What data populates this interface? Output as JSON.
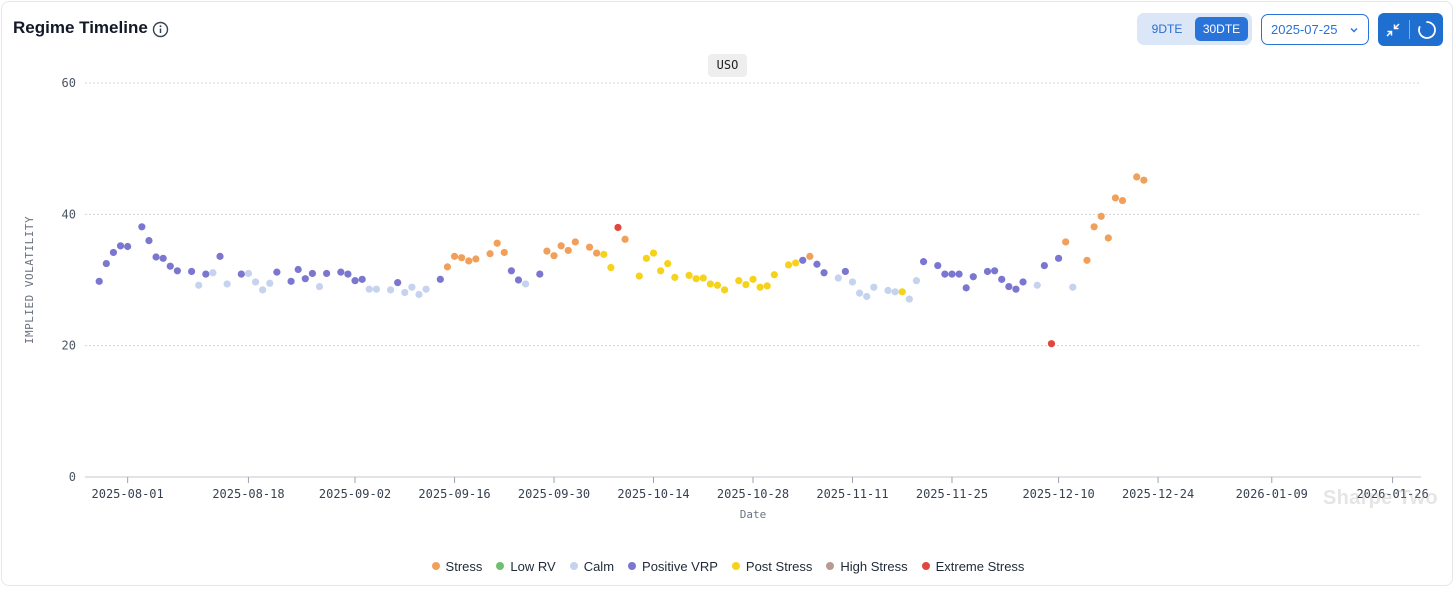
{
  "header": {
    "title": "Regime Timeline",
    "dte_options": [
      "9DTE",
      "30DTE"
    ],
    "dte_selected": "30DTE",
    "date_value": "2025-07-25"
  },
  "badge": "USO",
  "watermark": "Sharpe Two",
  "colors": {
    "Stress": "#f0a05a",
    "Low RV": "#6fbf6f",
    "Calm": "#c5d3ee",
    "Positive VRP": "#7b77d0",
    "Post Stress": "#f7d21a",
    "High Stress": "#b89a92",
    "Extreme Stress": "#e2473f",
    "accent": "#2a73d8"
  },
  "chart_data": {
    "type": "scatter",
    "ylabel": "IMPLIED VOLATILITY",
    "xlabel": "Date",
    "ylim": [
      0,
      60
    ],
    "yticks": [
      0,
      20,
      40,
      60
    ],
    "x_range": [
      "2025-07-26",
      "2026-01-30"
    ],
    "xticks": [
      "2025-08-01",
      "2025-08-18",
      "2025-09-02",
      "2025-09-16",
      "2025-09-30",
      "2025-10-14",
      "2025-10-28",
      "2025-11-11",
      "2025-11-25",
      "2025-12-10",
      "2025-12-24",
      "2026-01-09",
      "2026-01-26"
    ],
    "legend": [
      "Stress",
      "Low RV",
      "Calm",
      "Positive VRP",
      "Post Stress",
      "High Stress",
      "Extreme Stress"
    ],
    "points": [
      {
        "x": "2025-07-28",
        "y": 29.8,
        "regime": "Positive VRP"
      },
      {
        "x": "2025-07-29",
        "y": 32.5,
        "regime": "Positive VRP"
      },
      {
        "x": "2025-07-30",
        "y": 34.2,
        "regime": "Positive VRP"
      },
      {
        "x": "2025-07-31",
        "y": 35.2,
        "regime": "Positive VRP"
      },
      {
        "x": "2025-08-01",
        "y": 35.1,
        "regime": "Positive VRP"
      },
      {
        "x": "2025-08-03",
        "y": 38.1,
        "regime": "Positive VRP"
      },
      {
        "x": "2025-08-04",
        "y": 36.0,
        "regime": "Positive VRP"
      },
      {
        "x": "2025-08-05",
        "y": 33.5,
        "regime": "Positive VRP"
      },
      {
        "x": "2025-08-06",
        "y": 33.3,
        "regime": "Positive VRP"
      },
      {
        "x": "2025-08-07",
        "y": 32.1,
        "regime": "Positive VRP"
      },
      {
        "x": "2025-08-08",
        "y": 31.4,
        "regime": "Positive VRP"
      },
      {
        "x": "2025-08-10",
        "y": 31.3,
        "regime": "Positive VRP"
      },
      {
        "x": "2025-08-11",
        "y": 29.2,
        "regime": "Calm"
      },
      {
        "x": "2025-08-12",
        "y": 30.9,
        "regime": "Positive VRP"
      },
      {
        "x": "2025-08-13",
        "y": 31.1,
        "regime": "Calm"
      },
      {
        "x": "2025-08-14",
        "y": 33.6,
        "regime": "Positive VRP"
      },
      {
        "x": "2025-08-15",
        "y": 29.4,
        "regime": "Calm"
      },
      {
        "x": "2025-08-17",
        "y": 30.9,
        "regime": "Positive VRP"
      },
      {
        "x": "2025-08-18",
        "y": 31.0,
        "regime": "Calm"
      },
      {
        "x": "2025-08-19",
        "y": 29.7,
        "regime": "Calm"
      },
      {
        "x": "2025-08-20",
        "y": 28.5,
        "regime": "Calm"
      },
      {
        "x": "2025-08-21",
        "y": 29.5,
        "regime": "Calm"
      },
      {
        "x": "2025-08-22",
        "y": 31.2,
        "regime": "Positive VRP"
      },
      {
        "x": "2025-08-24",
        "y": 29.8,
        "regime": "Positive VRP"
      },
      {
        "x": "2025-08-25",
        "y": 31.6,
        "regime": "Positive VRP"
      },
      {
        "x": "2025-08-26",
        "y": 30.2,
        "regime": "Positive VRP"
      },
      {
        "x": "2025-08-27",
        "y": 31.0,
        "regime": "Positive VRP"
      },
      {
        "x": "2025-08-28",
        "y": 29.0,
        "regime": "Calm"
      },
      {
        "x": "2025-08-29",
        "y": 31.0,
        "regime": "Positive VRP"
      },
      {
        "x": "2025-08-31",
        "y": 31.2,
        "regime": "Positive VRP"
      },
      {
        "x": "2025-09-01",
        "y": 30.9,
        "regime": "Positive VRP"
      },
      {
        "x": "2025-09-02",
        "y": 29.9,
        "regime": "Positive VRP"
      },
      {
        "x": "2025-09-03",
        "y": 30.1,
        "regime": "Positive VRP"
      },
      {
        "x": "2025-09-04",
        "y": 28.6,
        "regime": "Calm"
      },
      {
        "x": "2025-09-05",
        "y": 28.6,
        "regime": "Calm"
      },
      {
        "x": "2025-09-07",
        "y": 28.5,
        "regime": "Calm"
      },
      {
        "x": "2025-09-08",
        "y": 29.6,
        "regime": "Positive VRP"
      },
      {
        "x": "2025-09-09",
        "y": 28.1,
        "regime": "Calm"
      },
      {
        "x": "2025-09-10",
        "y": 28.9,
        "regime": "Calm"
      },
      {
        "x": "2025-09-11",
        "y": 27.8,
        "regime": "Calm"
      },
      {
        "x": "2025-09-12",
        "y": 28.6,
        "regime": "Calm"
      },
      {
        "x": "2025-09-14",
        "y": 30.1,
        "regime": "Positive VRP"
      },
      {
        "x": "2025-09-15",
        "y": 32.0,
        "regime": "Stress"
      },
      {
        "x": "2025-09-16",
        "y": 33.6,
        "regime": "Stress"
      },
      {
        "x": "2025-09-17",
        "y": 33.4,
        "regime": "Stress"
      },
      {
        "x": "2025-09-18",
        "y": 32.9,
        "regime": "Stress"
      },
      {
        "x": "2025-09-19",
        "y": 33.2,
        "regime": "Stress"
      },
      {
        "x": "2025-09-21",
        "y": 34.0,
        "regime": "Stress"
      },
      {
        "x": "2025-09-22",
        "y": 35.6,
        "regime": "Stress"
      },
      {
        "x": "2025-09-23",
        "y": 34.2,
        "regime": "Stress"
      },
      {
        "x": "2025-09-24",
        "y": 31.4,
        "regime": "Positive VRP"
      },
      {
        "x": "2025-09-25",
        "y": 30.0,
        "regime": "Positive VRP"
      },
      {
        "x": "2025-09-26",
        "y": 29.4,
        "regime": "Calm"
      },
      {
        "x": "2025-09-28",
        "y": 30.9,
        "regime": "Positive VRP"
      },
      {
        "x": "2025-09-29",
        "y": 34.4,
        "regime": "Stress"
      },
      {
        "x": "2025-09-30",
        "y": 33.7,
        "regime": "Stress"
      },
      {
        "x": "2025-10-01",
        "y": 35.2,
        "regime": "Stress"
      },
      {
        "x": "2025-10-02",
        "y": 34.5,
        "regime": "Stress"
      },
      {
        "x": "2025-10-03",
        "y": 35.8,
        "regime": "Stress"
      },
      {
        "x": "2025-10-05",
        "y": 35.0,
        "regime": "Stress"
      },
      {
        "x": "2025-10-06",
        "y": 34.1,
        "regime": "Stress"
      },
      {
        "x": "2025-10-07",
        "y": 33.9,
        "regime": "Post Stress"
      },
      {
        "x": "2025-10-08",
        "y": 31.9,
        "regime": "Post Stress"
      },
      {
        "x": "2025-10-09",
        "y": 38.0,
        "regime": "Extreme Stress"
      },
      {
        "x": "2025-10-10",
        "y": 36.2,
        "regime": "Stress"
      },
      {
        "x": "2025-10-12",
        "y": 30.6,
        "regime": "Post Stress"
      },
      {
        "x": "2025-10-13",
        "y": 33.3,
        "regime": "Post Stress"
      },
      {
        "x": "2025-10-14",
        "y": 34.1,
        "regime": "Post Stress"
      },
      {
        "x": "2025-10-15",
        "y": 31.4,
        "regime": "Post Stress"
      },
      {
        "x": "2025-10-16",
        "y": 32.5,
        "regime": "Post Stress"
      },
      {
        "x": "2025-10-17",
        "y": 30.4,
        "regime": "Post Stress"
      },
      {
        "x": "2025-10-19",
        "y": 30.7,
        "regime": "Post Stress"
      },
      {
        "x": "2025-10-20",
        "y": 30.2,
        "regime": "Post Stress"
      },
      {
        "x": "2025-10-21",
        "y": 30.3,
        "regime": "Post Stress"
      },
      {
        "x": "2025-10-22",
        "y": 29.4,
        "regime": "Post Stress"
      },
      {
        "x": "2025-10-23",
        "y": 29.2,
        "regime": "Post Stress"
      },
      {
        "x": "2025-10-24",
        "y": 28.5,
        "regime": "Post Stress"
      },
      {
        "x": "2025-10-26",
        "y": 29.9,
        "regime": "Post Stress"
      },
      {
        "x": "2025-10-27",
        "y": 29.3,
        "regime": "Post Stress"
      },
      {
        "x": "2025-10-28",
        "y": 30.1,
        "regime": "Post Stress"
      },
      {
        "x": "2025-10-29",
        "y": 28.9,
        "regime": "Post Stress"
      },
      {
        "x": "2025-10-30",
        "y": 29.1,
        "regime": "Post Stress"
      },
      {
        "x": "2025-10-31",
        "y": 30.8,
        "regime": "Post Stress"
      },
      {
        "x": "2025-11-02",
        "y": 32.3,
        "regime": "Post Stress"
      },
      {
        "x": "2025-11-03",
        "y": 32.6,
        "regime": "Post Stress"
      },
      {
        "x": "2025-11-04",
        "y": 33.0,
        "regime": "Positive VRP"
      },
      {
        "x": "2025-11-05",
        "y": 33.6,
        "regime": "Stress"
      },
      {
        "x": "2025-11-06",
        "y": 32.4,
        "regime": "Positive VRP"
      },
      {
        "x": "2025-11-07",
        "y": 31.1,
        "regime": "Positive VRP"
      },
      {
        "x": "2025-11-09",
        "y": 30.3,
        "regime": "Calm"
      },
      {
        "x": "2025-11-10",
        "y": 31.3,
        "regime": "Positive VRP"
      },
      {
        "x": "2025-11-11",
        "y": 29.7,
        "regime": "Calm"
      },
      {
        "x": "2025-11-12",
        "y": 28.0,
        "regime": "Calm"
      },
      {
        "x": "2025-11-13",
        "y": 27.5,
        "regime": "Calm"
      },
      {
        "x": "2025-11-14",
        "y": 28.9,
        "regime": "Calm"
      },
      {
        "x": "2025-11-16",
        "y": 28.4,
        "regime": "Calm"
      },
      {
        "x": "2025-11-17",
        "y": 28.2,
        "regime": "Calm"
      },
      {
        "x": "2025-11-18",
        "y": 28.2,
        "regime": "Post Stress"
      },
      {
        "x": "2025-11-19",
        "y": 27.1,
        "regime": "Calm"
      },
      {
        "x": "2025-11-20",
        "y": 29.9,
        "regime": "Calm"
      },
      {
        "x": "2025-11-21",
        "y": 32.8,
        "regime": "Positive VRP"
      },
      {
        "x": "2025-11-23",
        "y": 32.2,
        "regime": "Positive VRP"
      },
      {
        "x": "2025-11-24",
        "y": 30.9,
        "regime": "Positive VRP"
      },
      {
        "x": "2025-11-25",
        "y": 30.9,
        "regime": "Positive VRP"
      },
      {
        "x": "2025-11-26",
        "y": 30.9,
        "regime": "Positive VRP"
      },
      {
        "x": "2025-11-27",
        "y": 28.8,
        "regime": "Positive VRP"
      },
      {
        "x": "2025-11-28",
        "y": 30.5,
        "regime": "Positive VRP"
      },
      {
        "x": "2025-11-30",
        "y": 31.3,
        "regime": "Positive VRP"
      },
      {
        "x": "2025-12-01",
        "y": 31.4,
        "regime": "Positive VRP"
      },
      {
        "x": "2025-12-02",
        "y": 30.1,
        "regime": "Positive VRP"
      },
      {
        "x": "2025-12-03",
        "y": 29.0,
        "regime": "Positive VRP"
      },
      {
        "x": "2025-12-04",
        "y": 28.6,
        "regime": "Positive VRP"
      },
      {
        "x": "2025-12-05",
        "y": 29.7,
        "regime": "Positive VRP"
      },
      {
        "x": "2025-12-07",
        "y": 29.2,
        "regime": "Calm"
      },
      {
        "x": "2025-12-08",
        "y": 32.2,
        "regime": "Positive VRP"
      },
      {
        "x": "2025-12-09",
        "y": 20.3,
        "regime": "Extreme Stress"
      },
      {
        "x": "2025-12-10",
        "y": 33.3,
        "regime": "Positive VRP"
      },
      {
        "x": "2025-12-11",
        "y": 35.8,
        "regime": "Stress"
      },
      {
        "x": "2025-12-12",
        "y": 28.9,
        "regime": "Calm"
      },
      {
        "x": "2025-12-14",
        "y": 33.0,
        "regime": "Stress"
      },
      {
        "x": "2025-12-15",
        "y": 38.1,
        "regime": "Stress"
      },
      {
        "x": "2025-12-16",
        "y": 39.7,
        "regime": "Stress"
      },
      {
        "x": "2025-12-17",
        "y": 36.4,
        "regime": "Stress"
      },
      {
        "x": "2025-12-18",
        "y": 42.5,
        "regime": "Stress"
      },
      {
        "x": "2025-12-19",
        "y": 42.1,
        "regime": "Stress"
      },
      {
        "x": "2025-12-21",
        "y": 45.7,
        "regime": "Stress"
      },
      {
        "x": "2025-12-22",
        "y": 45.2,
        "regime": "Stress"
      }
    ]
  },
  "legend_items": [
    {
      "label": "Stress",
      "color": "#f0a05a"
    },
    {
      "label": "Low RV",
      "color": "#6fbf6f"
    },
    {
      "label": "Calm",
      "color": "#c5d3ee"
    },
    {
      "label": "Positive VRP",
      "color": "#7b77d0"
    },
    {
      "label": "Post Stress",
      "color": "#f7d21a"
    },
    {
      "label": "High Stress",
      "color": "#b89a92"
    },
    {
      "label": "Extreme Stress",
      "color": "#e2473f"
    }
  ]
}
